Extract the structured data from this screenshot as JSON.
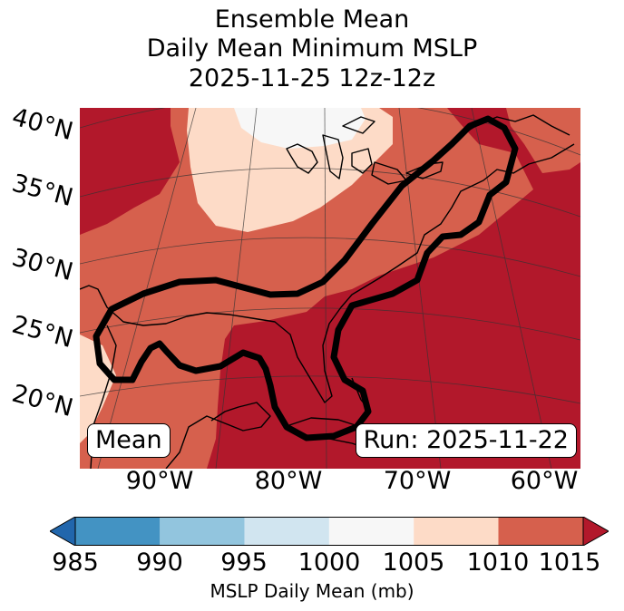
{
  "title": {
    "line1": "Ensemble Mean",
    "line2": "Daily Mean Minimum MSLP",
    "line3": "2025-11-25 12z-12z"
  },
  "map": {
    "latitude_labels": [
      "40°N",
      "35°N",
      "30°N",
      "25°N",
      "20°N"
    ],
    "longitude_labels": [
      "90°W",
      "80°W",
      "70°W",
      "60°W"
    ],
    "mean_label": "Mean",
    "run_label": "Run: 2025-11-22",
    "fill_colors": {
      "bin_1010_1015": "#b2182b",
      "bin_1005_1010": "#d6604d",
      "bin_1000_1005": "#fddbc7",
      "bin_995_1000": "#f7f7f7"
    },
    "contour_color": "#000000",
    "coastline_color": "#000000"
  },
  "colorbar": {
    "ticks": [
      "985",
      "990",
      "995",
      "1000",
      "1005",
      "1010",
      "1015"
    ],
    "label": "MSLP Daily Mean (mb)",
    "colors": [
      "#2166ac",
      "#4393c3",
      "#92c5de",
      "#d1e5f0",
      "#f7f7f7",
      "#fddbc7",
      "#d6604d",
      "#b2182b"
    ]
  }
}
